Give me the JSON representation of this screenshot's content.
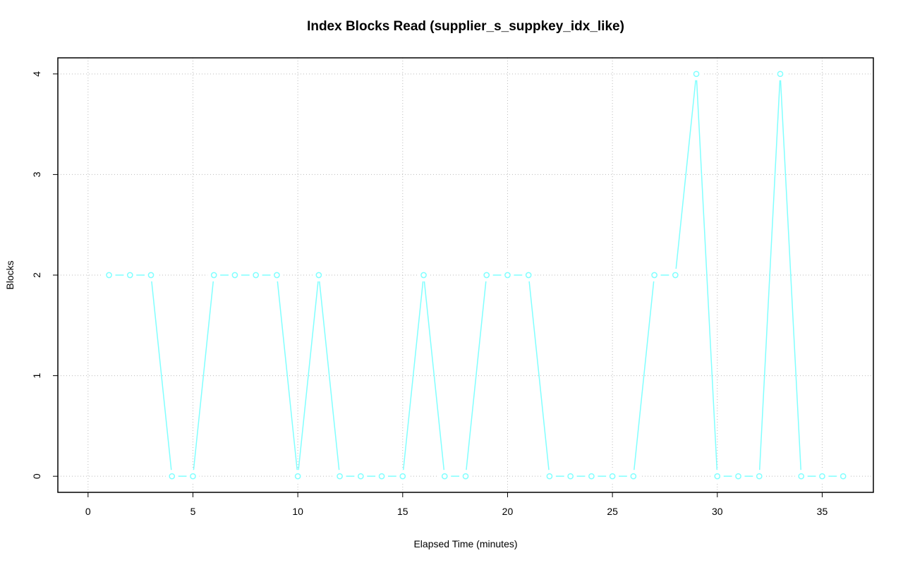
{
  "chart_data": {
    "type": "line",
    "title": "Index Blocks Read (supplier_s_suppkey_idx_like)",
    "x_label": "Elapsed Time (minutes)",
    "y_label": "Blocks",
    "x": [
      1,
      2,
      3,
      4,
      5,
      6,
      7,
      8,
      9,
      10,
      11,
      12,
      13,
      14,
      15,
      16,
      17,
      18,
      19,
      20,
      21,
      22,
      23,
      24,
      25,
      26,
      27,
      28,
      29,
      30,
      31,
      32,
      33,
      34,
      35,
      36
    ],
    "series": [
      {
        "color": "#80ffff",
        "values": [
          2,
          2,
          2,
          0,
          0,
          2,
          2,
          2,
          2,
          0,
          2,
          0,
          0,
          0,
          0,
          2,
          0,
          0,
          2,
          2,
          2,
          0,
          0,
          0,
          0,
          0,
          2,
          2,
          4,
          0,
          0,
          0,
          4,
          0,
          0,
          0
        ]
      }
    ],
    "xlim": [
      -1.44,
      37.44
    ],
    "xticks": [
      0,
      5,
      10,
      15,
      20,
      25,
      30,
      35
    ],
    "ylim": [
      -0.16,
      4.16
    ],
    "yticks": [
      0,
      1,
      2,
      3,
      4
    ],
    "grid": true
  }
}
